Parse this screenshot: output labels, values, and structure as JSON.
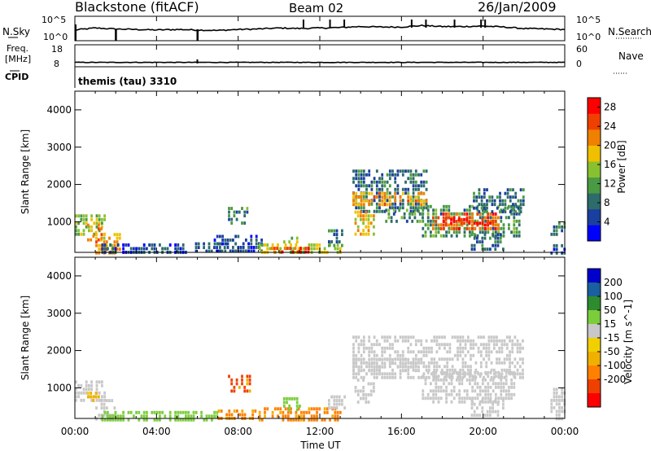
{
  "header": {
    "title": "Blackstone (fitACF)",
    "beam": "Beam 02",
    "date": "26/Jan/2009"
  },
  "noise_panel": {
    "left_label": "N.Sky",
    "left_ticks": [
      "10^5",
      "10^0"
    ],
    "right_label": "N.Search",
    "right_ticks": [
      "10^5",
      "10^0"
    ]
  },
  "freq_panel": {
    "left_label_line1": "Freq.",
    "left_label_line2": "[MHz]",
    "left_ticks": [
      "18",
      "8"
    ],
    "right_label": "Nave",
    "right_ticks": [
      "60",
      "0"
    ]
  },
  "cpid_panel": {
    "label": "CPID",
    "program": "themis (tau) 3310"
  },
  "time_axis": {
    "label": "Time UT",
    "ticks": [
      "00:00",
      "04:00",
      "08:00",
      "12:00",
      "16:00",
      "20:00",
      "00:00"
    ]
  },
  "colors": {
    "power_scale": [
      "#0000ff",
      "#1a3f9f",
      "#2e6b6b",
      "#4a9a44",
      "#88c030",
      "#f0c000",
      "#f08000",
      "#f04000",
      "#ff0000"
    ],
    "velocity_scale": [
      "#ff0000",
      "#f04000",
      "#ff8000",
      "#f0b000",
      "#f0d000",
      "#c8c8c8",
      "#7ccd3c",
      "#2e8b2e",
      "#1a5fa0",
      "#0000cc"
    ],
    "ground_scatter": "#c8c8c8"
  },
  "chart_data": [
    {
      "type": "line",
      "title": "Blackstone (fitACF)",
      "subtitle": "Beam 02",
      "date": "26/Jan/2009",
      "xlabel": "",
      "ylabel": "N.Sky",
      "xlim": [
        0,
        24
      ],
      "x": [
        0,
        1,
        2,
        3,
        4,
        5,
        6,
        7,
        8,
        9,
        10,
        11,
        12,
        13,
        14,
        15,
        16,
        17,
        18,
        19,
        20,
        21,
        22,
        23,
        24
      ],
      "values": [
        2.2,
        2.6,
        2.4,
        2.3,
        2.2,
        2.3,
        2.2,
        2.1,
        2.3,
        2.4,
        2.6,
        2.5,
        2.6,
        2.7,
        2.9,
        2.8,
        2.8,
        3.1,
        2.9,
        2.9,
        3.0,
        2.8,
        2.5,
        2.4,
        2.3
      ],
      "spikes_at": [
        2.0,
        6.0,
        11.2,
        12.5,
        13.2,
        16.5,
        17.2,
        18.6,
        19.9,
        20.1
      ]
    },
    {
      "type": "line",
      "xlabel": "",
      "ylabel": "Freq. [MHz]",
      "xlim": [
        0,
        24
      ],
      "ylim": [
        8,
        18
      ],
      "x": [
        0,
        24
      ],
      "values": [
        10,
        10
      ]
    },
    {
      "type": "heatmap",
      "xlabel": "Time UT",
      "ylabel": "Slant Range [km]",
      "xlim": [
        0,
        24
      ],
      "ylim": [
        180,
        4500
      ],
      "yticks": [
        1000,
        2000,
        3000,
        4000
      ],
      "colorbar": {
        "label": "Power [dB]",
        "ticks": [
          4,
          8,
          12,
          16,
          20,
          24,
          28
        ],
        "range": [
          0,
          30
        ]
      },
      "patches": [
        {
          "t0": 0.0,
          "t1": 1.5,
          "r0": 650,
          "r1": 1200,
          "power": 14
        },
        {
          "t0": 0.6,
          "t1": 1.3,
          "r0": 550,
          "r1": 950,
          "power": 22
        },
        {
          "t0": 1.0,
          "t1": 2.2,
          "r0": 180,
          "r1": 700,
          "power": 20
        },
        {
          "t0": 1.3,
          "t1": 5.5,
          "r0": 180,
          "r1": 420,
          "power": 6
        },
        {
          "t0": 5.5,
          "t1": 7.5,
          "r0": 180,
          "r1": 450,
          "power": 6
        },
        {
          "t0": 7.5,
          "t1": 8.5,
          "r0": 950,
          "r1": 1400,
          "power": 10
        },
        {
          "t0": 6.8,
          "t1": 9.2,
          "r0": 180,
          "r1": 650,
          "power": 6
        },
        {
          "t0": 9.0,
          "t1": 13.0,
          "r0": 180,
          "r1": 420,
          "power": 16
        },
        {
          "t0": 9.6,
          "t1": 11.4,
          "r0": 200,
          "r1": 330,
          "power": 26
        },
        {
          "t0": 10.2,
          "t1": 11.0,
          "r0": 420,
          "r1": 700,
          "power": 14
        },
        {
          "t0": 12.4,
          "t1": 13.2,
          "r0": 400,
          "r1": 800,
          "power": 8
        },
        {
          "t0": 13.6,
          "t1": 17.2,
          "r0": 1300,
          "r1": 2400,
          "power": 8
        },
        {
          "t0": 13.6,
          "t1": 17.2,
          "r0": 1500,
          "r1": 1800,
          "power": 20
        },
        {
          "t0": 13.7,
          "t1": 14.6,
          "r0": 650,
          "r1": 1300,
          "power": 18
        },
        {
          "t0": 15.2,
          "t1": 17.0,
          "r0": 1050,
          "r1": 1350,
          "power": 10
        },
        {
          "t0": 17.0,
          "t1": 21.8,
          "r0": 650,
          "r1": 1450,
          "power": 10
        },
        {
          "t0": 17.5,
          "t1": 20.8,
          "r0": 850,
          "r1": 1250,
          "power": 24
        },
        {
          "t0": 18.0,
          "t1": 20.5,
          "r0": 950,
          "r1": 1100,
          "power": 28
        },
        {
          "t0": 19.5,
          "t1": 22.0,
          "r0": 1300,
          "r1": 1900,
          "power": 8
        },
        {
          "t0": 19.4,
          "t1": 21.0,
          "r0": 300,
          "r1": 700,
          "power": 8
        },
        {
          "t0": 23.3,
          "t1": 24.0,
          "r0": 650,
          "r1": 1000,
          "power": 8
        },
        {
          "t0": 23.3,
          "t1": 24.0,
          "r0": 180,
          "r1": 400,
          "power": 6
        }
      ]
    },
    {
      "type": "heatmap",
      "xlabel": "Time UT",
      "ylabel": "Slant Range [km]",
      "xlim": [
        0,
        24
      ],
      "ylim": [
        180,
        4500
      ],
      "yticks": [
        1000,
        2000,
        3000,
        4000
      ],
      "colorbar": {
        "label": "Velocity [m s^-1]",
        "ticks": [
          200,
          100,
          50,
          15,
          -15,
          -50,
          -100,
          -200
        ]
      },
      "patches": [
        {
          "t0": 0.0,
          "t1": 1.5,
          "r0": 650,
          "r1": 1200,
          "velocity": 0
        },
        {
          "t0": 0.6,
          "t1": 1.2,
          "r0": 650,
          "r1": 900,
          "velocity": -30
        },
        {
          "t0": 1.0,
          "t1": 2.0,
          "r0": 180,
          "r1": 700,
          "velocity": 0
        },
        {
          "t0": 1.3,
          "t1": 7.0,
          "r0": 180,
          "r1": 380,
          "velocity": 30
        },
        {
          "t0": 7.0,
          "t1": 9.0,
          "r0": 180,
          "r1": 420,
          "velocity": -60
        },
        {
          "t0": 7.5,
          "t1": 8.6,
          "r0": 950,
          "r1": 1350,
          "velocity": -90
        },
        {
          "t0": 9.0,
          "t1": 13.0,
          "r0": 180,
          "r1": 480,
          "velocity": -70
        },
        {
          "t0": 10.2,
          "t1": 11.0,
          "r0": 450,
          "r1": 750,
          "velocity": 30
        },
        {
          "t0": 12.4,
          "t1": 13.2,
          "r0": 450,
          "r1": 800,
          "velocity": 0
        },
        {
          "t0": 13.6,
          "t1": 22.0,
          "r0": 1300,
          "r1": 2400,
          "velocity": 0
        },
        {
          "t0": 13.6,
          "t1": 17.0,
          "r0": 1450,
          "r1": 1800,
          "velocity": 0
        },
        {
          "t0": 13.7,
          "t1": 14.6,
          "r0": 650,
          "r1": 1250,
          "velocity": 0
        },
        {
          "t0": 17.0,
          "t1": 21.5,
          "r0": 650,
          "r1": 1450,
          "velocity": 0
        },
        {
          "t0": 19.4,
          "t1": 21.0,
          "r0": 300,
          "r1": 700,
          "velocity": 0
        },
        {
          "t0": 23.3,
          "t1": 24.0,
          "r0": 180,
          "r1": 1000,
          "velocity": 0
        }
      ]
    }
  ]
}
